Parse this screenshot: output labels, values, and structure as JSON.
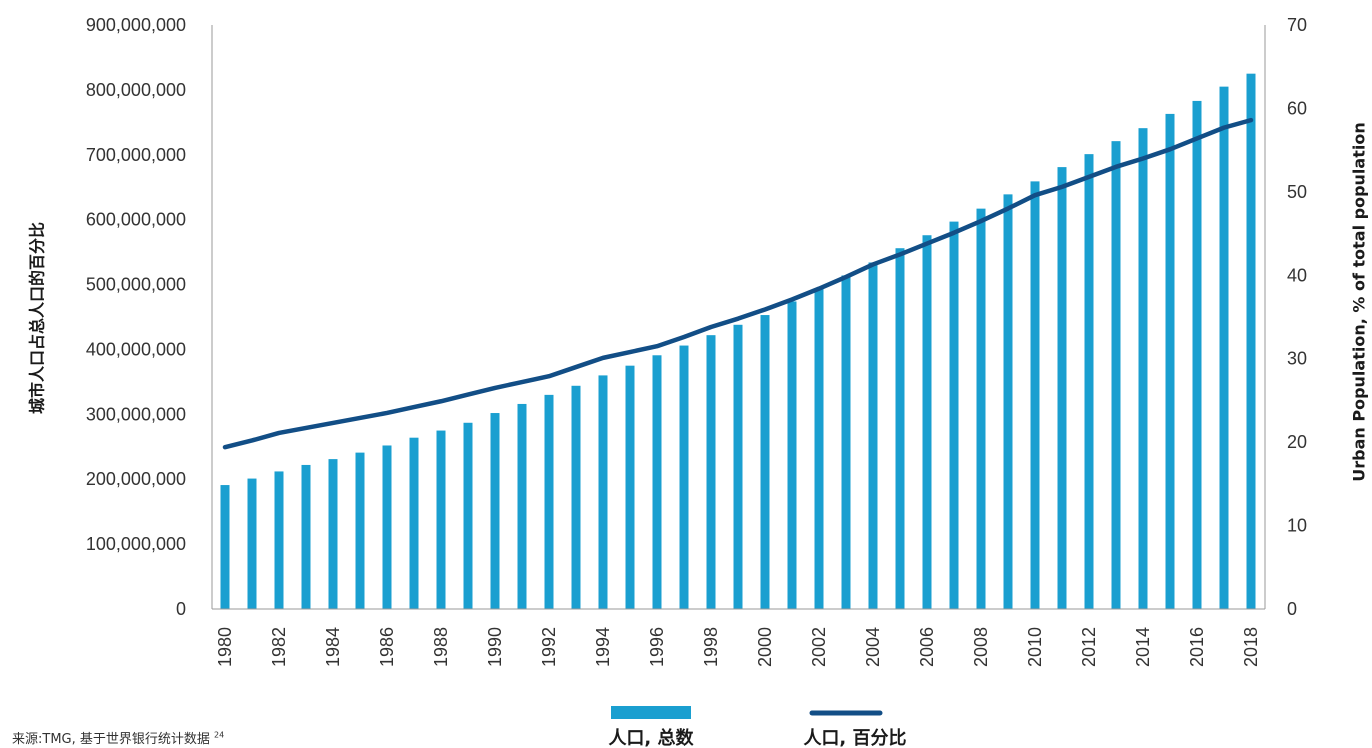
{
  "chart_data": {
    "type": "bar",
    "x": [
      1980,
      1981,
      1982,
      1983,
      1984,
      1985,
      1986,
      1987,
      1988,
      1989,
      1990,
      1991,
      1992,
      1993,
      1994,
      1995,
      1996,
      1997,
      1998,
      1999,
      2000,
      2001,
      2002,
      2003,
      2004,
      2005,
      2006,
      2007,
      2008,
      2009,
      2010,
      2011,
      2012,
      2013,
      2014,
      2015,
      2016,
      2017,
      2018
    ],
    "x_tick_labels": [
      "1980",
      "1982",
      "1984",
      "1986",
      "1988",
      "1990",
      "1992",
      "1994",
      "1996",
      "1998",
      "2000",
      "2002",
      "2004",
      "2006",
      "2008",
      "2010",
      "2012",
      "2014",
      "2016",
      "2018"
    ],
    "series": [
      {
        "name": "人口, 总数",
        "type": "bar",
        "axis": "left",
        "color": "#1a9fd0",
        "values": [
          191000000,
          201000000,
          212000000,
          222000000,
          231000000,
          241000000,
          252000000,
          264000000,
          275000000,
          287000000,
          302000000,
          316000000,
          330000000,
          344000000,
          360000000,
          375000000,
          391000000,
          406000000,
          422000000,
          438000000,
          453000000,
          474000000,
          494000000,
          514000000,
          534000000,
          556000000,
          576000000,
          597000000,
          617000000,
          639000000,
          659000000,
          681000000,
          701000000,
          721000000,
          741000000,
          763000000,
          783000000,
          805000000,
          825000000
        ]
      },
      {
        "name": "人口, 百分比",
        "type": "line",
        "axis": "right",
        "color": "#124e86",
        "values": [
          19.4,
          20.2,
          21.1,
          21.7,
          22.3,
          22.9,
          23.5,
          24.2,
          24.9,
          25.7,
          26.5,
          27.2,
          27.9,
          29.0,
          30.1,
          30.8,
          31.5,
          32.6,
          33.8,
          34.8,
          35.9,
          37.1,
          38.4,
          39.8,
          41.3,
          42.5,
          43.8,
          45.1,
          46.5,
          48.0,
          49.6,
          50.6,
          51.8,
          53.0,
          54.0,
          55.1,
          56.4,
          57.7,
          58.6
        ]
      }
    ],
    "left_axis": {
      "label": "城市人口占总人口的百分比",
      "ylim": [
        0,
        900000000
      ],
      "ticks": [
        "0",
        "100,000,000",
        "200,000,000",
        "300,000,000",
        "400,000,000",
        "500,000,000",
        "600,000,000",
        "700,000,000",
        "800,000,000",
        "900,000,000"
      ]
    },
    "right_axis": {
      "label": "Urban Population, % of total population",
      "ylim": [
        0,
        70
      ],
      "ticks": [
        "0",
        "10",
        "20",
        "30",
        "40",
        "50",
        "60",
        "70"
      ]
    },
    "grid": false,
    "legend": {
      "position": "bottom-center",
      "items": [
        "人口, 总数",
        "人口, 百分比"
      ]
    },
    "source_note": "来源:TMG, 基于世界银行统计数据",
    "source_ref": "24"
  }
}
